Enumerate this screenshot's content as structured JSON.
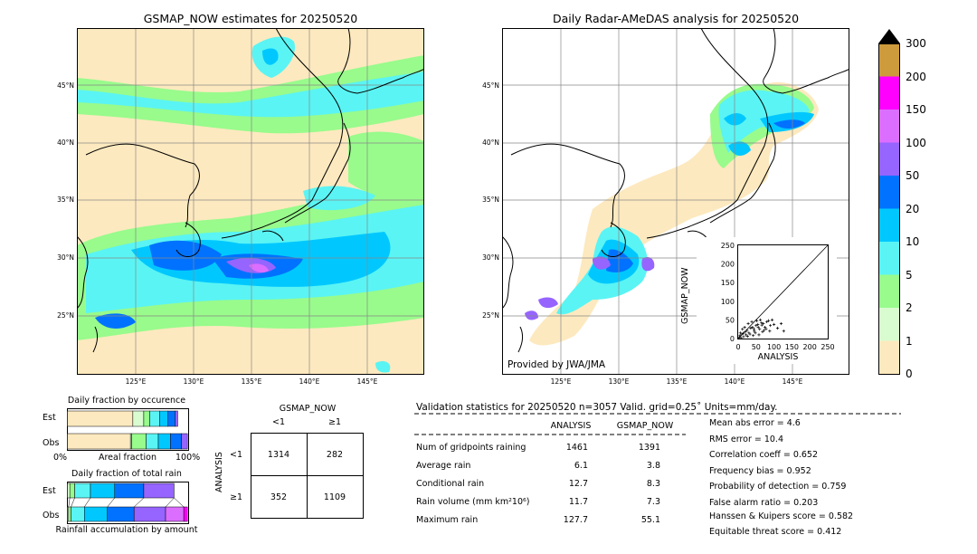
{
  "colors": {
    "bg_no_rain": "#fde9bf",
    "scale": [
      "#fde9bf",
      "#d9fbd0",
      "#98fb8c",
      "#5af4f4",
      "#00c8ff",
      "#0072ff",
      "#9664ff",
      "#dc6eff",
      "#ff00ff",
      "#cd9b3c"
    ],
    "land_line": "#000000",
    "grid": "#888888"
  },
  "map_left": {
    "title": "GSMAP_NOW estimates for 20250520",
    "lat_labels": [
      "45°N",
      "40°N",
      "35°N",
      "30°N",
      "25°N"
    ],
    "lon_labels": [
      "125°E",
      "130°E",
      "135°E",
      "140°E",
      "145°E"
    ]
  },
  "map_right": {
    "title": "Daily Radar-AMeDAS analysis for 20250520",
    "lat_labels": [
      "45°N",
      "40°N",
      "35°N",
      "30°N",
      "25°N"
    ],
    "lon_labels": [
      "125°E",
      "130°E",
      "135°E",
      "140°E",
      "145°E"
    ],
    "credit": "Provided by JWA/JMA"
  },
  "colorbar": {
    "ticks": [
      "0",
      "1",
      "2",
      "5",
      "10",
      "20",
      "50",
      "100",
      "150",
      "200",
      "300"
    ]
  },
  "scatter": {
    "ylabel": "GSMAP_NOW",
    "xlabel": "ANALYSIS",
    "ticks": [
      "0",
      "50",
      "100",
      "150",
      "200",
      "250"
    ]
  },
  "occurrence": {
    "title": "Daily fraction by occurence",
    "row_est": "Est",
    "row_obs": "Obs",
    "axis_left": "0%",
    "axis_mid": "Areal fraction",
    "axis_right": "100%"
  },
  "total_rain": {
    "title": "Daily fraction of total rain",
    "row_est": "Est",
    "row_obs": "Obs",
    "axis_label": "Rainfall accumulation by amount"
  },
  "contingency": {
    "col_title": "GSMAP_NOW",
    "col_lt": "<1",
    "col_ge": "≥1",
    "row_title": "ANALYSIS",
    "row_lt": "<1",
    "row_ge": "≥1",
    "cells": [
      "1314",
      "282",
      "352",
      "1109"
    ]
  },
  "validation": {
    "header": "Validation statistics for 20250520  n=3057 Valid. grid=0.25˚ Units=mm/day.",
    "col_analysis": "ANALYSIS",
    "col_gsmap": "GSMAP_NOW",
    "rows": [
      {
        "label": "Num of gridpoints raining",
        "a": "1461",
        "g": "1391"
      },
      {
        "label": "Average rain",
        "a": "6.1",
        "g": "3.8"
      },
      {
        "label": "Conditional rain",
        "a": "12.7",
        "g": "8.3"
      },
      {
        "label": "Rain volume (mm km²10⁶)",
        "a": "11.7",
        "g": "7.3"
      },
      {
        "label": "Maximum rain",
        "a": "127.7",
        "g": "55.1"
      }
    ],
    "scores": [
      "Mean abs error =    4.6",
      "RMS error =   10.4",
      "Correlation coeff =  0.652",
      "Frequency bias =  0.952",
      "Probability of detection =  0.759",
      "False alarm ratio =  0.203",
      "Hanssen & Kuipers score =  0.582",
      "Equitable threat score =  0.412"
    ]
  },
  "chart_data": [
    {
      "type": "scatter",
      "xlabel": "ANALYSIS",
      "ylabel": "GSMAP_NOW",
      "xlim": [
        0,
        250
      ],
      "ylim": [
        0,
        250
      ],
      "points": [
        [
          5,
          8
        ],
        [
          10,
          12
        ],
        [
          15,
          5
        ],
        [
          20,
          18
        ],
        [
          25,
          22
        ],
        [
          30,
          15
        ],
        [
          35,
          28
        ],
        [
          40,
          30
        ],
        [
          45,
          20
        ],
        [
          50,
          35
        ],
        [
          55,
          38
        ],
        [
          60,
          25
        ],
        [
          65,
          42
        ],
        [
          70,
          40
        ],
        [
          75,
          30
        ],
        [
          80,
          45
        ],
        [
          85,
          48
        ],
        [
          90,
          35
        ],
        [
          95,
          50
        ],
        [
          100,
          38
        ],
        [
          110,
          28
        ],
        [
          120,
          40
        ],
        [
          127,
          20
        ],
        [
          8,
          2
        ],
        [
          12,
          25
        ],
        [
          18,
          30
        ],
        [
          22,
          10
        ],
        [
          28,
          40
        ],
        [
          33,
          12
        ],
        [
          38,
          45
        ],
        [
          42,
          8
        ],
        [
          48,
          15
        ],
        [
          52,
          48
        ],
        [
          58,
          10
        ],
        [
          62,
          50
        ],
        [
          68,
          18
        ],
        [
          72,
          22
        ],
        [
          3,
          3
        ],
        [
          6,
          15
        ],
        [
          14,
          14
        ],
        [
          26,
          6
        ],
        [
          44,
          26
        ],
        [
          56,
          30
        ],
        [
          66,
          36
        ],
        [
          78,
          26
        ],
        [
          88,
          20
        ]
      ],
      "diagonal": true
    },
    {
      "type": "bar",
      "title": "Daily fraction by occurence",
      "series": [
        {
          "name": "Est",
          "values": [
            0.54,
            0.09,
            0.05,
            0.08,
            0.07,
            0.06,
            0.02
          ]
        },
        {
          "name": "Obs",
          "values": [
            0.52,
            0.01,
            0.12,
            0.1,
            0.1,
            0.09,
            0.05
          ]
        }
      ]
    },
    {
      "type": "bar",
      "title": "Daily fraction of total rain",
      "series": [
        {
          "name": "Est",
          "values": [
            0.02,
            0.04,
            0.13,
            0.2,
            0.24,
            0.25,
            0.0
          ]
        },
        {
          "name": "Obs",
          "values": [
            0.01,
            0.02,
            0.11,
            0.19,
            0.22,
            0.26,
            0.15,
            0.03
          ]
        }
      ]
    }
  ]
}
